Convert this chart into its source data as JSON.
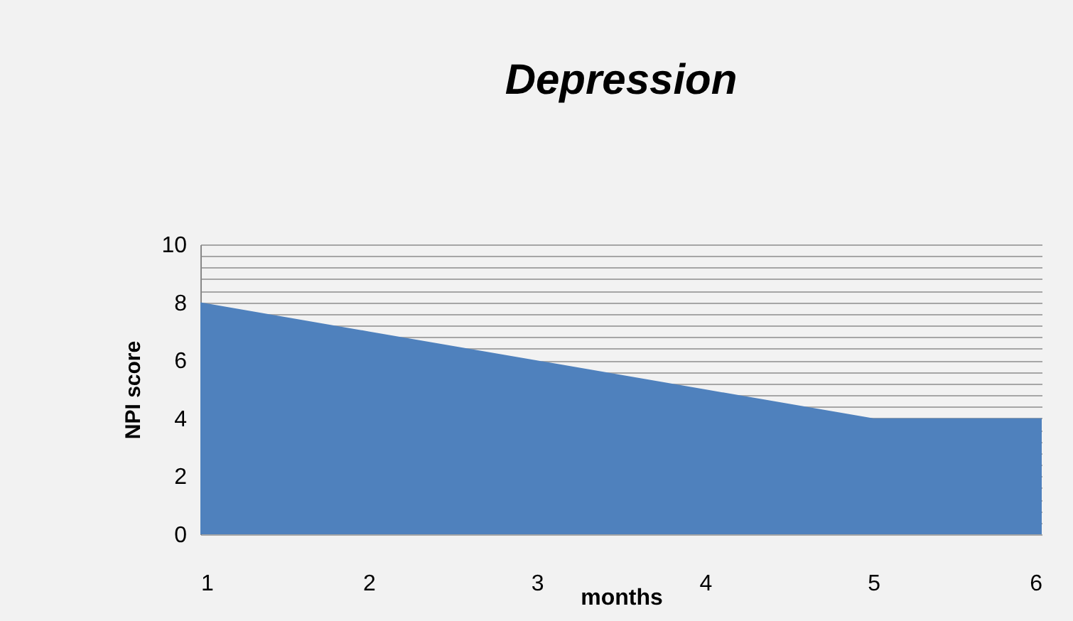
{
  "chart_data": {
    "type": "area",
    "title": "Depression",
    "xlabel": "months",
    "ylabel": "NPI score",
    "x": [
      1,
      2,
      3,
      4,
      5,
      6
    ],
    "series": [
      {
        "color": "#4f81bd",
        "values": [
          8,
          7,
          6,
          5,
          4,
          4
        ]
      }
    ],
    "xlim": [
      1,
      6
    ],
    "xticks": [
      1,
      2,
      3,
      4,
      5,
      6
    ],
    "ylim": [
      0,
      10
    ],
    "yticks": [
      0,
      {
        "value": 0.4,
        "label": null
      },
      {
        "value": 0.8,
        "label": null
      },
      {
        "value": 1.2,
        "label": null
      },
      {
        "value": 1.6,
        "label": null
      },
      2,
      {
        "value": 2.4,
        "label": null
      },
      {
        "value": 2.8,
        "label": null
      },
      {
        "value": 3.2,
        "label": null
      },
      {
        "value": 3.6,
        "label": null
      },
      4,
      {
        "value": 4.4,
        "label": null
      },
      {
        "value": 4.8,
        "label": null
      },
      {
        "value": 5.2,
        "label": null
      },
      {
        "value": 5.6,
        "label": null
      },
      6,
      {
        "value": 6.4,
        "label": null
      },
      {
        "value": 6.8,
        "label": null
      },
      {
        "value": 7.2,
        "label": null
      },
      {
        "value": 7.6,
        "label": null
      },
      8,
      {
        "value": 8.4,
        "label": null
      },
      {
        "value": 8.8,
        "label": null
      },
      {
        "value": 9.2,
        "label": null
      },
      {
        "value": 9.6,
        "label": null
      },
      10
    ],
    "grid": "y"
  }
}
